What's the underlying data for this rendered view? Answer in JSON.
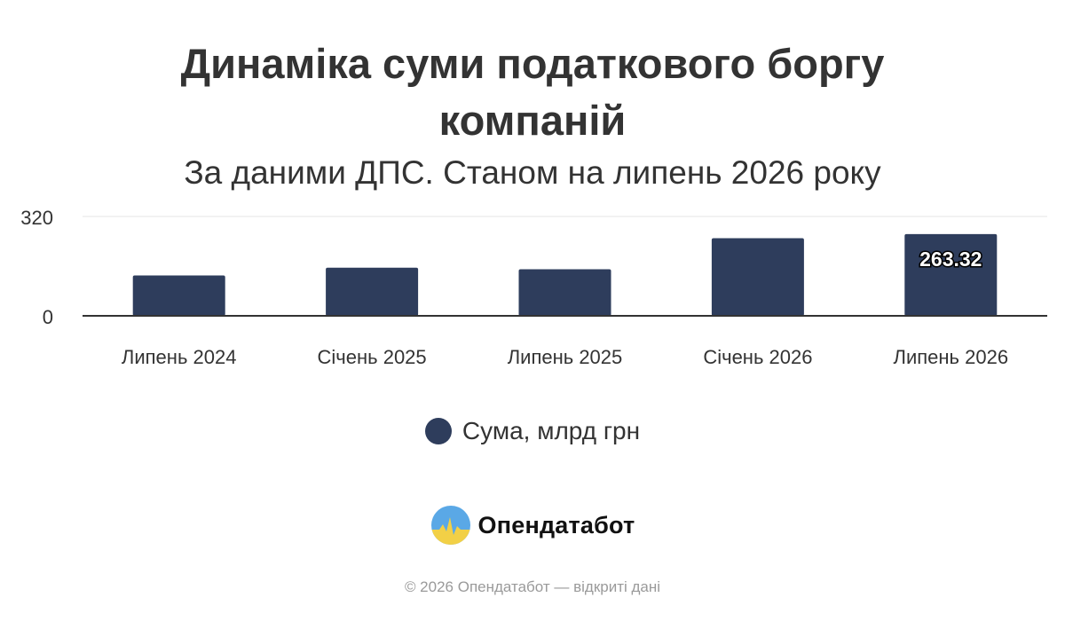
{
  "title": "Динаміка суми податкового боргу компаній",
  "subtitle": "За даними ДПС. Станом на липень 2026 року",
  "colors": {
    "bar": "#2e3d5c",
    "grid": "#e6e6e6",
    "axis": "#333333",
    "text": "#333333",
    "footer": "#9a9a9a",
    "logo_blue": "#5aa8e6",
    "logo_yellow": "#f2d046"
  },
  "chart_data": {
    "type": "bar",
    "categories": [
      "Липень 2024",
      "Січень 2025",
      "Липень 2025",
      "Січень 2026",
      "Липень 2026"
    ],
    "series": [
      {
        "name": "Сума, млрд грн",
        "values": [
          130,
          155,
          150,
          250,
          263.32
        ]
      }
    ],
    "data_labels": [
      null,
      null,
      null,
      null,
      "263.32"
    ],
    "yticks": [
      "0",
      "320"
    ],
    "ylim": [
      0,
      320
    ],
    "grid": true,
    "legend": "bottom-center"
  },
  "brand": {
    "name": "Опендатабот",
    "logo_icon": "opendatabot-logo-icon"
  },
  "footer": {
    "copyright": "© 2026 Опендатабот — відкриті дані"
  }
}
